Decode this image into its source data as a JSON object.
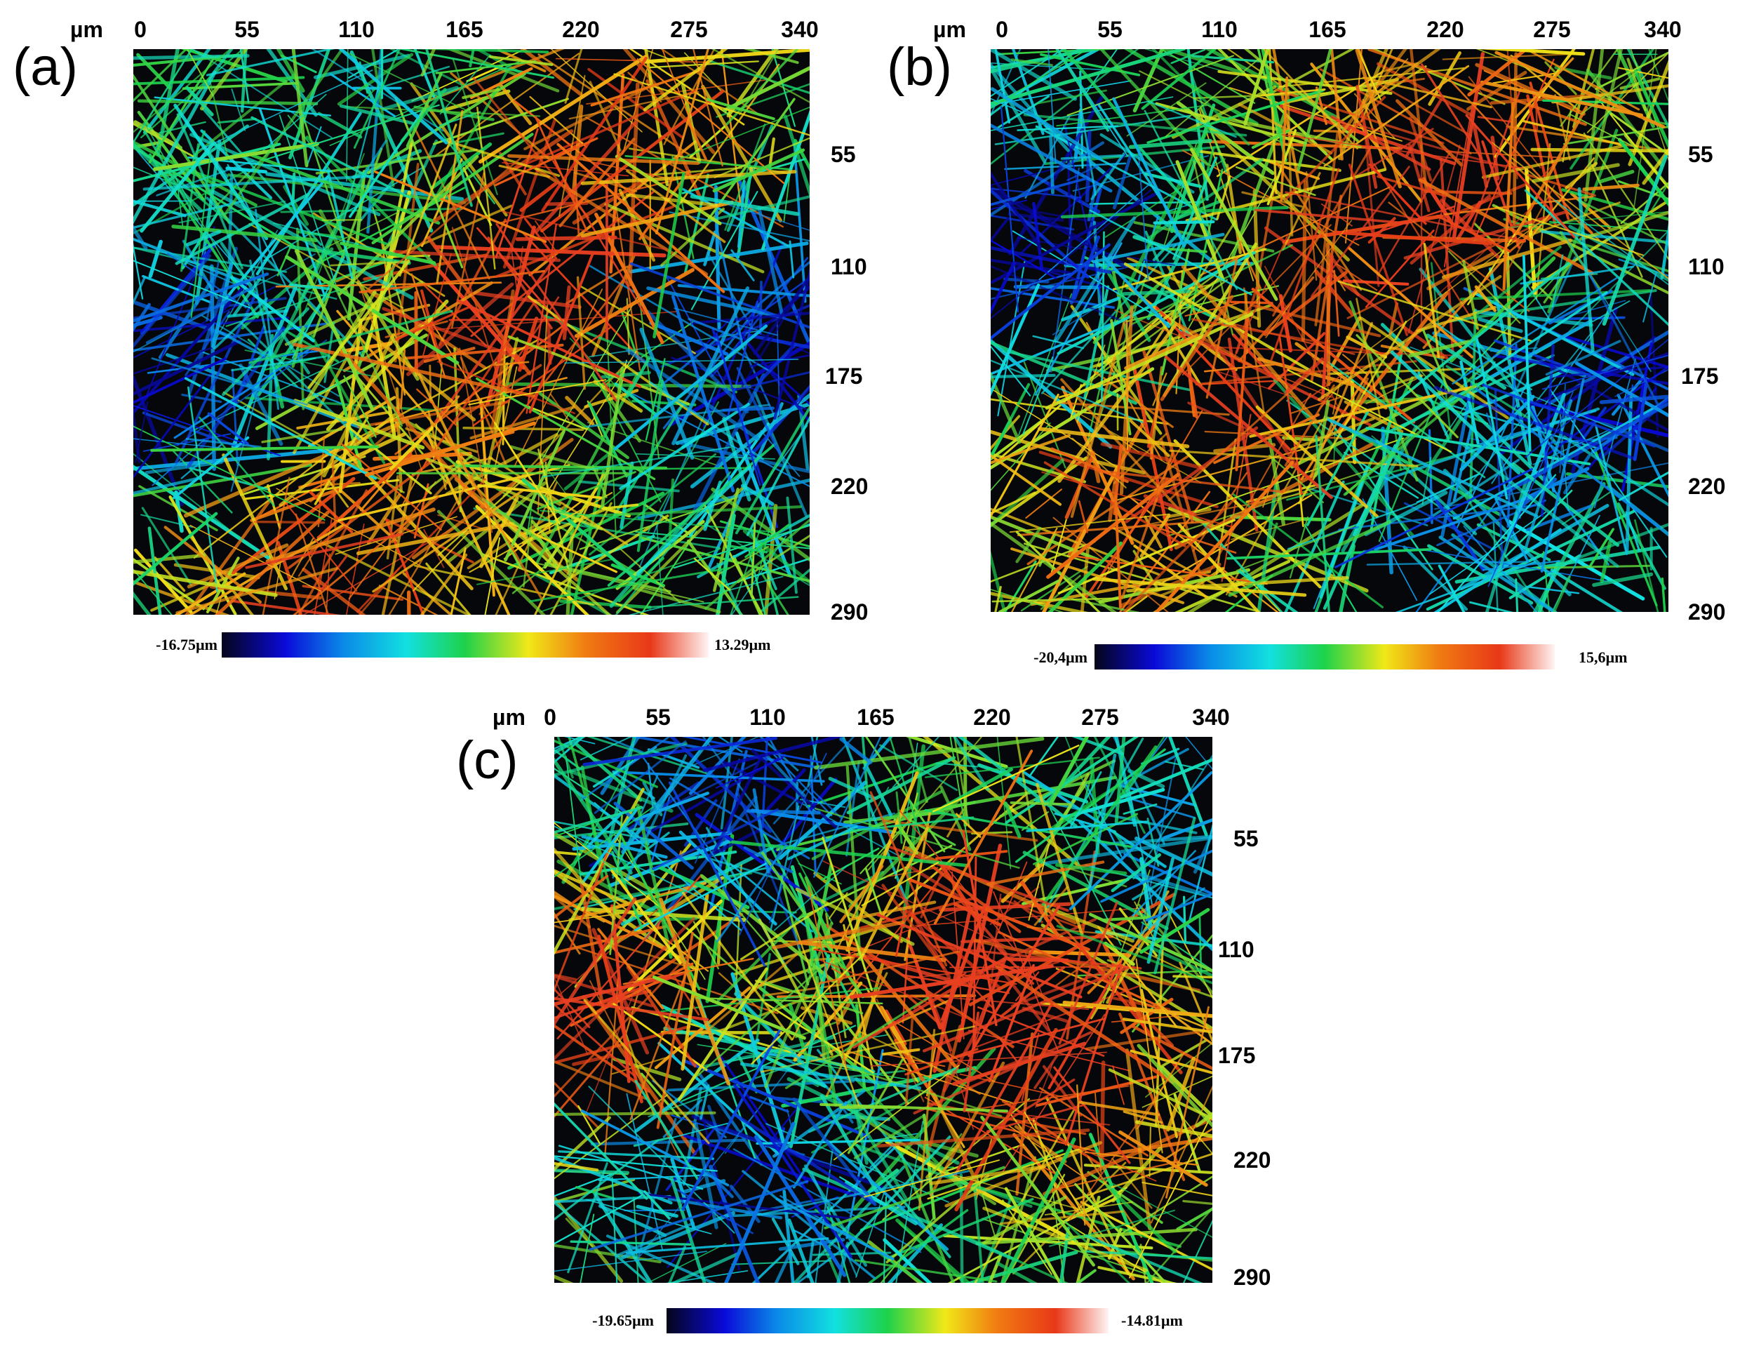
{
  "unit": "µm",
  "x_ticks": [
    "0",
    "55",
    "110",
    "165",
    "220",
    "275",
    "340"
  ],
  "y_ticks": [
    "55",
    "110",
    "175",
    "220",
    "290"
  ],
  "colorscale": [
    "#05051a",
    "#0a0ad8",
    "#0a8ae8",
    "#12e0e0",
    "#1ed24a",
    "#f0e818",
    "#f07a12",
    "#e83818",
    "#fff4f4"
  ],
  "panels": [
    {
      "label": "(a)",
      "cbar_min": "-16.75µm",
      "cbar_max": "13.29µm"
    },
    {
      "label": "(b)",
      "cbar_min": "-20,4µm",
      "cbar_max": "15,6µm"
    },
    {
      "label": "(c)",
      "cbar_min": "-19.65µm",
      "cbar_max": "-14.81µm"
    }
  ]
}
